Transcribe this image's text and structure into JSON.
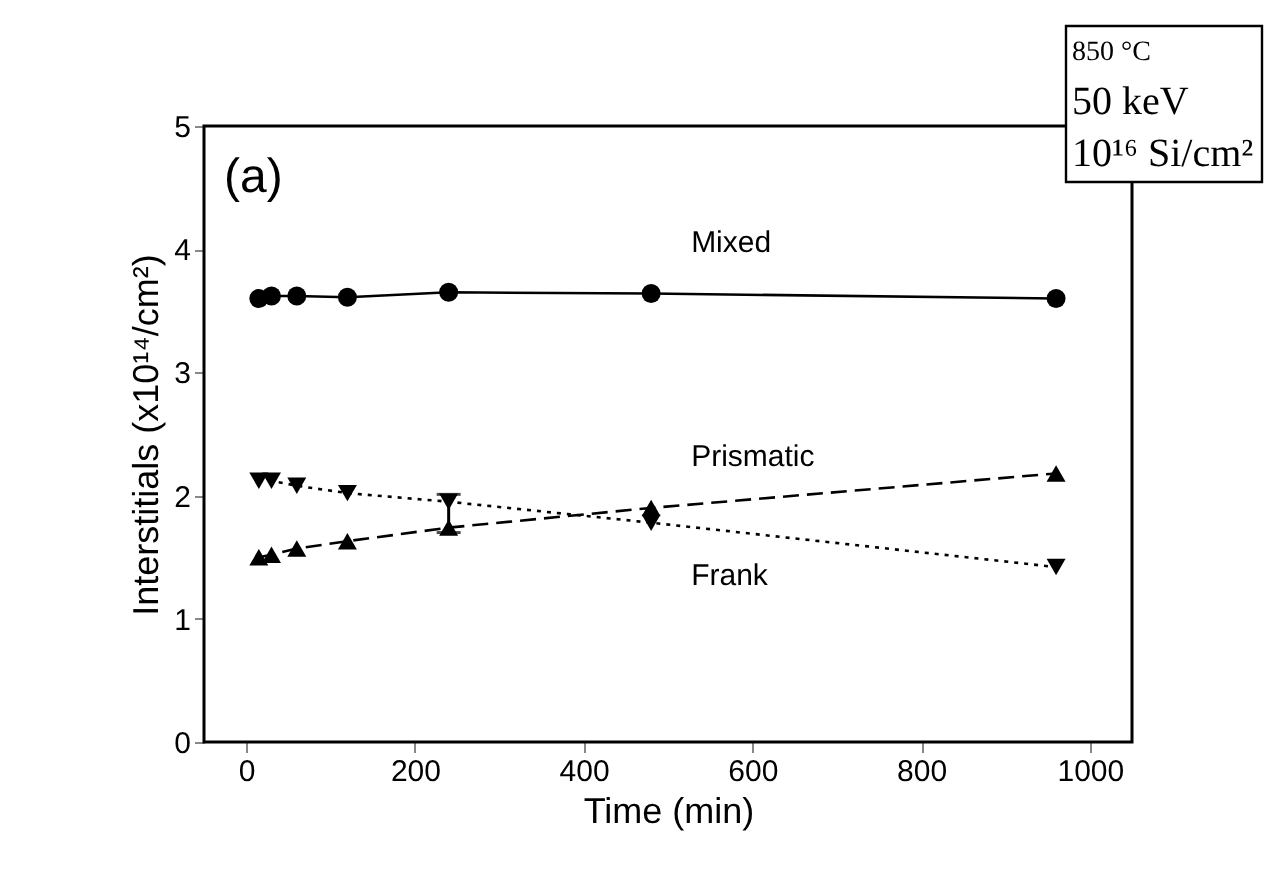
{
  "chart_data": {
    "type": "line",
    "xlabel": "Time (min)",
    "ylabel": "Interstitials (x10¹⁴/cm²)",
    "x": [
      15,
      30,
      60,
      120,
      240,
      480,
      960
    ],
    "series": [
      {
        "name": "Mixed",
        "color": "#000000",
        "marker": "circle",
        "line_style": "solid",
        "values": [
          3.6,
          3.62,
          3.62,
          3.61,
          3.65,
          3.64,
          3.6
        ]
      },
      {
        "name": "Prismatic",
        "color": "#000000",
        "marker": "triangle",
        "line_style": "dashed",
        "values": [
          1.5,
          1.52,
          1.57,
          1.63,
          1.74,
          1.9,
          2.18
        ]
      },
      {
        "name": "Frank",
        "color": "#000000",
        "marker": "triangle-down",
        "line_style": "dotted",
        "values": [
          2.12,
          2.12,
          2.08,
          2.02,
          1.95,
          1.78,
          1.42
        ],
        "errors": [
          null,
          null,
          null,
          null,
          [
            1.7,
            2.01
          ],
          null,
          null
        ]
      }
    ],
    "xlim": [
      -50,
      1050
    ],
    "xticks": [
      0,
      200,
      400,
      600,
      800,
      1000
    ],
    "ylim": [
      0,
      5
    ],
    "yticks": [
      0,
      1,
      2,
      3,
      4,
      5
    ],
    "grid": false,
    "legend": false,
    "annotations": [
      "(a)",
      "850 °C",
      "50 keV",
      "10¹⁶ Si/cm²"
    ]
  }
}
